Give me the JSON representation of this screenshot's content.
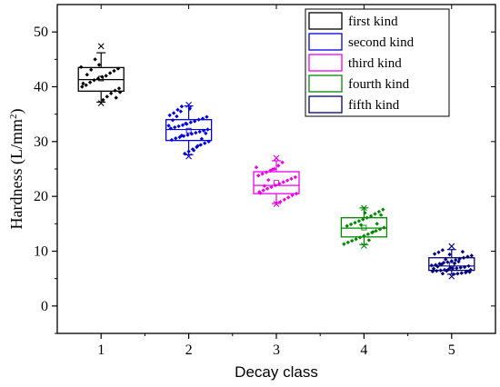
{
  "chart_data": {
    "type": "box",
    "xlabel": "Decay class",
    "ylabel": "Hardness (L/mm",
    "ylabel_sup": "2",
    "ylabel_close": ")",
    "xlim": [
      0.5,
      5.5
    ],
    "ylim": [
      -5,
      55
    ],
    "x_ticks": [
      "1",
      "2",
      "3",
      "4",
      "5"
    ],
    "y_ticks": [
      "0",
      "10",
      "20",
      "30",
      "40",
      "50"
    ],
    "y_tick_values": [
      0,
      10,
      20,
      30,
      40,
      50
    ],
    "grid": false,
    "legend_position": "top-right",
    "series": [
      {
        "name": "first kind",
        "x": 1,
        "color": "#000000",
        "whisker_low": 37.2,
        "q1": 39.2,
        "median": 41.3,
        "q3": 43.5,
        "whisker_high": 46.2,
        "mean": 41.5,
        "extremes": [
          47.4,
          37.0
        ],
        "points": [
          43.6,
          43.3,
          42.9,
          42.5,
          42.0,
          41.8,
          41.5,
          41.2,
          40.8,
          40.3,
          40.0,
          39.7,
          39.3,
          38.8,
          38.2,
          37.6,
          44.0,
          45.0,
          43.1,
          42.2,
          40.6,
          39.0,
          38.0
        ]
      },
      {
        "name": "second kind",
        "x": 2,
        "color": "#0000dd",
        "whisker_low": 27.6,
        "q1": 30.2,
        "median": 32.2,
        "q3": 34.0,
        "whisker_high": 36.5,
        "mean": 32.0,
        "extremes": [
          36.7,
          27.3
        ],
        "points": [
          36.4,
          35.8,
          35.2,
          34.8,
          34.5,
          34.2,
          34.0,
          33.7,
          33.5,
          33.2,
          33.0,
          32.8,
          32.6,
          32.4,
          32.2,
          32.0,
          31.8,
          31.6,
          31.4,
          31.2,
          31.0,
          30.8,
          30.6,
          30.3,
          30.0,
          29.7,
          29.4,
          29.0,
          28.6,
          28.2,
          27.8,
          35.5,
          34.6,
          33.9,
          32.9,
          31.5,
          30.5,
          29.2,
          28.4,
          36.0,
          33.3,
          31.1
        ]
      },
      {
        "name": "third kind",
        "x": 3,
        "color": "#ee00ee",
        "whisker_low": 18.7,
        "q1": 20.5,
        "median": 22.0,
        "q3": 24.5,
        "whisker_high": 26.5,
        "mean": 22.5,
        "extremes": [
          27.0,
          18.6
        ],
        "points": [
          26.2,
          25.6,
          25.0,
          24.7,
          24.4,
          24.1,
          23.8,
          23.5,
          23.2,
          22.9,
          22.6,
          22.3,
          22.0,
          21.7,
          21.4,
          21.1,
          20.8,
          20.5,
          20.2,
          19.8,
          19.4,
          19.0,
          18.8,
          24.9,
          23.0,
          21.9,
          20.6,
          25.3
        ]
      },
      {
        "name": "fourth kind",
        "x": 4,
        "color": "#008800",
        "whisker_low": 11.2,
        "q1": 12.6,
        "median": 14.2,
        "q3": 16.1,
        "whisker_high": 17.9,
        "mean": 14.3,
        "extremes": [
          17.9,
          11.0
        ],
        "points": [
          17.6,
          17.2,
          16.8,
          16.4,
          16.1,
          15.8,
          15.5,
          15.2,
          14.9,
          14.6,
          14.3,
          14.0,
          13.7,
          13.4,
          13.1,
          12.8,
          12.5,
          12.2,
          11.9,
          11.6,
          11.3,
          16.6,
          15.0,
          13.5,
          12.0,
          17.0,
          14.8
        ]
      },
      {
        "name": "fifth kind",
        "x": 5,
        "color": "#000080",
        "whisker_low": 5.8,
        "q1": 6.5,
        "median": 7.3,
        "q3": 8.8,
        "whisker_high": 10.3,
        "mean": 7.5,
        "extremes": [
          10.9,
          5.4
        ],
        "points": [
          10.2,
          9.8,
          9.5,
          9.2,
          9.0,
          8.8,
          8.6,
          8.4,
          8.2,
          8.0,
          7.9,
          7.7,
          7.5,
          7.4,
          7.3,
          7.1,
          7.0,
          6.9,
          6.8,
          6.7,
          6.6,
          6.5,
          6.4,
          6.3,
          6.2,
          6.1,
          6.0,
          5.9,
          5.8,
          9.4,
          8.5,
          7.6,
          7.2,
          6.8,
          6.6,
          6.3,
          9.9,
          8.1,
          7.8,
          7.0,
          6.4,
          5.9
        ]
      }
    ]
  }
}
